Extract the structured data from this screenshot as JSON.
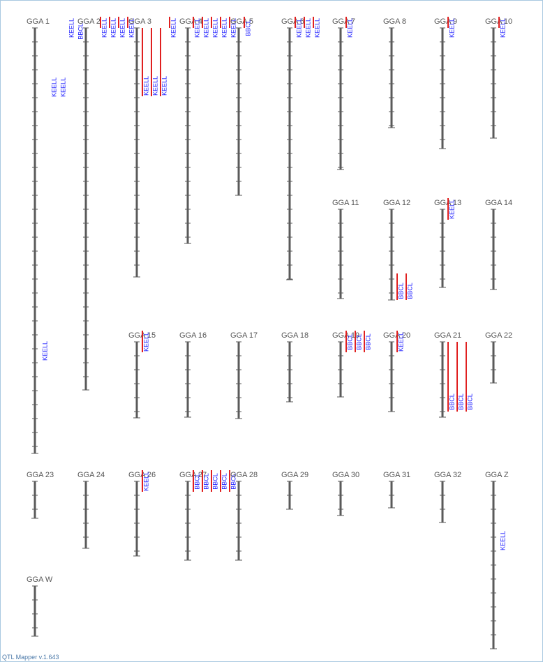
{
  "chromosomes": [
    {
      "label": "GGA 1",
      "qtls": [
        "KEELL",
        "KEELL",
        "KEELL"
      ]
    },
    {
      "label": "GGA 2",
      "qtls": [
        "KEELL",
        "BBCL",
        "KEELL",
        "KEELL",
        "KEELL",
        "KEELL"
      ]
    },
    {
      "label": "GGA 3",
      "qtls": [
        "KEELL",
        "KEELL",
        "KEELL",
        "KEELL"
      ]
    },
    {
      "label": "GGA 4",
      "qtls": [
        "KEELL",
        "KEELL",
        "KEELL",
        "KEELL",
        "KEELL"
      ]
    },
    {
      "label": "GGA 5",
      "qtls": [
        "BBCL"
      ]
    },
    {
      "label": "GGA 6",
      "qtls": [
        "KEELL",
        "KEELL",
        "KEELL"
      ]
    },
    {
      "label": "GGA 7",
      "qtls": [
        "KEELL"
      ]
    },
    {
      "label": "GGA 8",
      "qtls": []
    },
    {
      "label": "GGA 9",
      "qtls": [
        "KEELL"
      ]
    },
    {
      "label": "GGA 10",
      "qtls": [
        "KEELL"
      ]
    },
    {
      "label": "GGA 11",
      "qtls": []
    },
    {
      "label": "GGA 12",
      "qtls": [
        "BBCL",
        "BBCL"
      ]
    },
    {
      "label": "GGA 13",
      "qtls": [
        "KEELL"
      ]
    },
    {
      "label": "GGA 14",
      "qtls": []
    },
    {
      "label": "GGA 15",
      "qtls": [
        "KEELL"
      ]
    },
    {
      "label": "GGA 16",
      "qtls": []
    },
    {
      "label": "GGA 17",
      "qtls": []
    },
    {
      "label": "GGA 18",
      "qtls": []
    },
    {
      "label": "GGA 19",
      "qtls": [
        "BBCL",
        "BBCL",
        "BBCL"
      ]
    },
    {
      "label": "GGA 20",
      "qtls": [
        "KEELL"
      ]
    },
    {
      "label": "GGA 21",
      "qtls": [
        "BBCL",
        "BBCL",
        "BBCL"
      ]
    },
    {
      "label": "GGA 22",
      "qtls": []
    },
    {
      "label": "GGA 23",
      "qtls": []
    },
    {
      "label": "GGA 24",
      "qtls": []
    },
    {
      "label": "GGA 26",
      "qtls": [
        "KEELL"
      ]
    },
    {
      "label": "GGA 27",
      "qtls": [
        "BBCL",
        "BBCL",
        "BBCL",
        "BBCL",
        "BBCL"
      ]
    },
    {
      "label": "GGA 28",
      "qtls": []
    },
    {
      "label": "GGA 29",
      "qtls": []
    },
    {
      "label": "GGA 30",
      "qtls": []
    },
    {
      "label": "GGA 31",
      "qtls": []
    },
    {
      "label": "GGA 32",
      "qtls": []
    },
    {
      "label": "GGA Z",
      "qtls": [
        "KEELL"
      ]
    },
    {
      "label": "GGA W",
      "qtls": []
    }
  ],
  "footer": "QTL Mapper v.1.643"
}
